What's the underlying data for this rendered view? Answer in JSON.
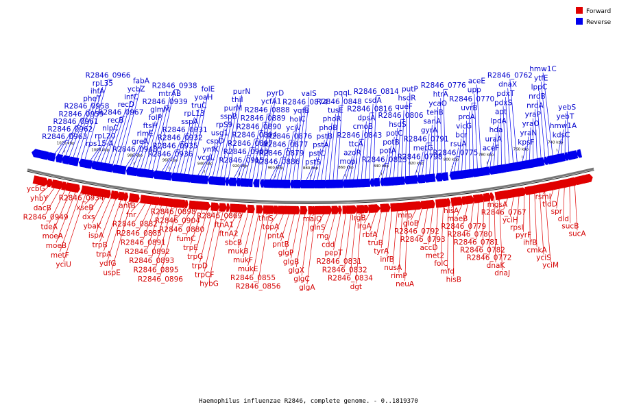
{
  "caption": "Haemophilus influenzae R2846, complete genome. - 0..1819370",
  "legend": [
    {
      "label": "Forward",
      "color": "#e00000"
    },
    {
      "label": "Reverse",
      "color": "#0000ee"
    }
  ],
  "scale": {
    "ticks": [
      "1020 kbp",
      "1000 kbp",
      "980 kbp",
      "960 kbp",
      "940 kbp",
      "920 kbp",
      "900 kbp",
      "880 kbp",
      "860 kbp",
      "840 kbp",
      "820 kbp",
      "800 kbp",
      "780 kbp",
      "760 kbp",
      "740 kbp"
    ]
  },
  "reverse_labels": [
    "R2846_0963",
    "R2846_0962",
    "R2846_0961",
    "R2846_0959",
    "R2846_0958",
    "pheT",
    "ihfA",
    "rpL35",
    "R2846_0966",
    "rps15-A",
    "rpL20",
    "nlpC",
    "recB",
    "R2846_0967",
    "recD",
    "infC",
    "ycbZ",
    "fabA",
    "R2846_0948",
    "greA",
    "rlmE",
    "ftsH",
    "folP",
    "glmM",
    "R2846_0939",
    "mtrAB",
    "R2846_0938",
    "R2846_0936",
    "R2846_0935",
    "R2846_0932",
    "R2846_0931",
    "sspA",
    "rpL13",
    "truC",
    "yoaH",
    "folE",
    "vcgL",
    "ynfK",
    "cspD",
    "usg1",
    "rpS9",
    "sspB",
    "purM",
    "thiI",
    "purN",
    "R2846_0915",
    "R2846_0900",
    "R2846_0897",
    "R2846_0894",
    "R2846_0890",
    "R2846_0889",
    "R2846_0888",
    "ycfA1",
    "pyrD",
    "R2846_0886",
    "R2846_0879",
    "R2846_0877",
    "R2846_0876",
    "ycjV",
    "holC",
    "yqfB",
    "R2846_0874",
    "valS",
    "pstS",
    "pstC",
    "pstA",
    "pstB",
    "phoB",
    "phoR",
    "tusE",
    "R2846_0848",
    "pqqL",
    "mopI",
    "azoR",
    "ttcA",
    "R2846_0843",
    "cmoB",
    "dpsA",
    "R2846_0816",
    "csdA",
    "R2846_0814",
    "R2846_0813",
    "potA",
    "potB",
    "potC",
    "hsdS",
    "R2846_0806",
    "queF",
    "hsdR",
    "putP",
    "R2846_0798",
    "metG",
    "R2846_0791",
    "gyrA",
    "sanA",
    "tehB",
    "ycaO",
    "htrA",
    "R2846_0776",
    "R2846_0775",
    "rsuA",
    "bcr",
    "vicG",
    "proA",
    "uvrB",
    "R2846_0770",
    "upp",
    "aceE",
    "aceF",
    "uraA",
    "hda",
    "lpdA",
    "apt",
    "pdxS",
    "pdxT",
    "dnaX",
    "R2846_0762",
    "kpsF",
    "yraN",
    "yraO",
    "yraP",
    "nrdA",
    "nrdB",
    "lppC",
    "ytfE",
    "hmw1C",
    "kdsC",
    "hmw1A",
    "yebT",
    "yebS"
  ],
  "forward_labels": [
    "ycbG",
    "yhbY",
    "dacB",
    "R2846_0949",
    "tdeA",
    "moeA",
    "moeB",
    "metF",
    "yciU",
    "R2846_0934",
    "xseB",
    "dxs",
    "ybaK",
    "ispA",
    "trpB",
    "trpA",
    "ydfG",
    "uspE",
    "antB",
    "fnr",
    "R2846_0882",
    "R2846_0885",
    "R2846_0891",
    "R2846_0892",
    "R2846_0893",
    "R2846_0895",
    "R2846_0896",
    "R2846_0898",
    "R2846_0904",
    "R2846_0880",
    "fumC",
    "trpE",
    "trpG",
    "trpD",
    "trpCF",
    "hybG",
    "R2846_0869",
    "ftnA1",
    "ftnA2",
    "sbcB",
    "mukB",
    "mukF",
    "mukE",
    "R2846_0855",
    "R2846_0856",
    "thrS",
    "topA",
    "pntA",
    "pntB",
    "glgP",
    "glgB",
    "glgX",
    "glgC",
    "glgA",
    "malQ",
    "glnS",
    "rng",
    "cdd",
    "pepT",
    "R2846_0831",
    "R2846_0832",
    "R2846_0834",
    "dgt",
    "lrgB",
    "lrgA",
    "rbfA",
    "truB",
    "tyrA",
    "infB",
    "nusA",
    "rimP",
    "neuA",
    "mrp",
    "gloB",
    "R2846_0792",
    "R2846_0793",
    "accD",
    "met2",
    "folC",
    "mfd",
    "hisB",
    "hisA",
    "maeB",
    "R2846_0779",
    "R2846_0780",
    "R2846_0781",
    "R2846_0782",
    "R2846_0772",
    "dnaK",
    "dnaJ",
    "mgsA",
    "R2846_0767",
    "yciH",
    "rpsI",
    "pyrF",
    "ihfB",
    "cmkA",
    "yciS",
    "yciM",
    "rsmI",
    "tldD",
    "spr",
    "dld",
    "sucB",
    "sucA"
  ]
}
